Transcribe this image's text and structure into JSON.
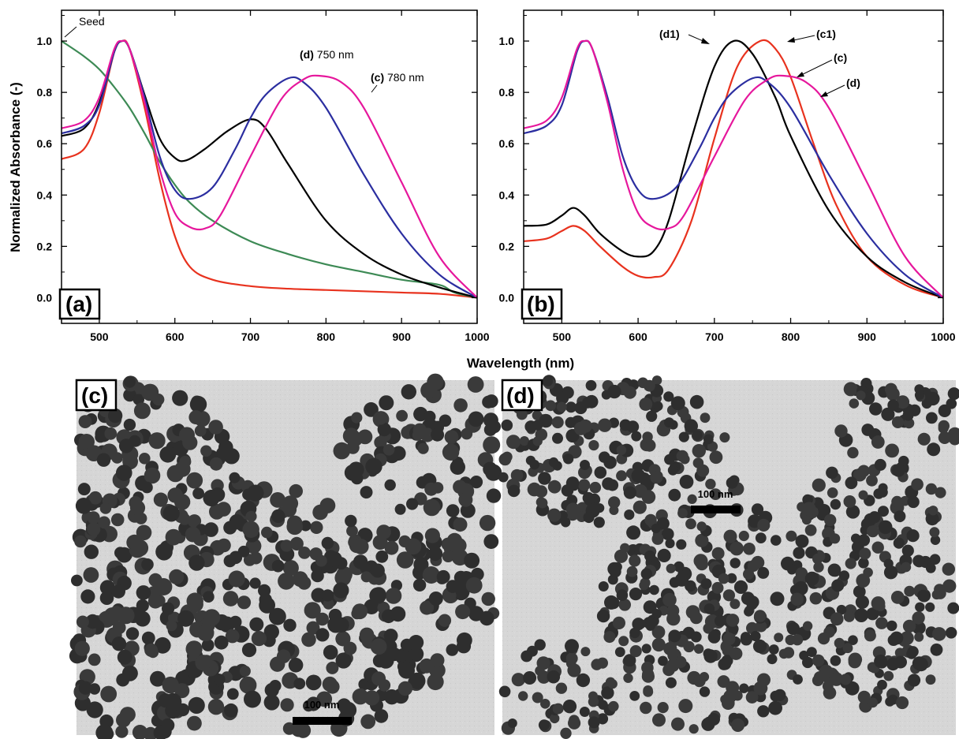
{
  "chart_data": [
    {
      "type": "line",
      "panel_label": "(a)",
      "xlabel": "Wavelength (nm)",
      "ylabel": "Normalized Absorbance (-)",
      "xlim": [
        450,
        1000
      ],
      "ylim": [
        -0.1,
        1.12
      ],
      "xticks": [
        500,
        600,
        700,
        800,
        900,
        1000
      ],
      "yticks": [
        0.0,
        0.2,
        0.4,
        0.6,
        0.8,
        1.0
      ],
      "grid": false,
      "series": [
        {
          "color": "#e8321e",
          "x": [
            450,
            480,
            500,
            520,
            530,
            540,
            560,
            580,
            600,
            620,
            650,
            700,
            750,
            800,
            850,
            900,
            950,
            1000
          ],
          "y": [
            0.54,
            0.58,
            0.72,
            0.96,
            1.0,
            0.97,
            0.74,
            0.46,
            0.24,
            0.12,
            0.07,
            0.045,
            0.035,
            0.03,
            0.025,
            0.02,
            0.015,
            0.0
          ]
        },
        {
          "color": "#3d8a55",
          "x": [
            450,
            480,
            500,
            520,
            540,
            560,
            580,
            600,
            620,
            650,
            700,
            750,
            800,
            850,
            900,
            950,
            970,
            1000
          ],
          "y": [
            1.0,
            0.94,
            0.89,
            0.82,
            0.74,
            0.64,
            0.53,
            0.44,
            0.37,
            0.3,
            0.22,
            0.17,
            0.13,
            0.1,
            0.07,
            0.05,
            0.02,
            0.0
          ]
        },
        {
          "color": "#000000",
          "x": [
            450,
            480,
            500,
            520,
            530,
            540,
            560,
            580,
            600,
            615,
            640,
            670,
            700,
            720,
            750,
            800,
            850,
            900,
            950,
            1000
          ],
          "y": [
            0.63,
            0.66,
            0.76,
            0.96,
            1.0,
            0.97,
            0.79,
            0.62,
            0.545,
            0.535,
            0.58,
            0.65,
            0.695,
            0.66,
            0.52,
            0.3,
            0.17,
            0.09,
            0.04,
            0.0
          ]
        },
        {
          "color": "#2b2ea0",
          "x": [
            450,
            480,
            500,
            520,
            530,
            540,
            560,
            580,
            600,
            620,
            650,
            680,
            700,
            720,
            750,
            770,
            800,
            850,
            900,
            950,
            1000
          ],
          "y": [
            0.64,
            0.67,
            0.75,
            0.96,
            1.0,
            0.97,
            0.78,
            0.55,
            0.42,
            0.385,
            0.43,
            0.58,
            0.7,
            0.79,
            0.855,
            0.84,
            0.74,
            0.48,
            0.25,
            0.09,
            0.0
          ]
        },
        {
          "color": "#e6179c",
          "x": [
            450,
            480,
            500,
            520,
            530,
            540,
            560,
            580,
            600,
            620,
            640,
            660,
            700,
            740,
            770,
            790,
            820,
            850,
            900,
            950,
            1000
          ],
          "y": [
            0.66,
            0.69,
            0.78,
            0.97,
            1.0,
            0.97,
            0.76,
            0.5,
            0.33,
            0.275,
            0.27,
            0.32,
            0.55,
            0.77,
            0.85,
            0.865,
            0.84,
            0.74,
            0.45,
            0.16,
            0.0
          ]
        }
      ],
      "annotations": [
        {
          "text": "Seed"
        },
        {
          "text_bold": "(d)",
          "text": " 750 nm"
        },
        {
          "text_bold": "(c)",
          "text": " 780 nm"
        }
      ]
    },
    {
      "type": "line",
      "panel_label": "(b)",
      "xlabel": "Wavelength (nm)",
      "xlim": [
        450,
        1000
      ],
      "ylim": [
        -0.1,
        1.12
      ],
      "xticks": [
        500,
        600,
        700,
        800,
        900,
        1000
      ],
      "yticks": [
        0.0,
        0.2,
        0.4,
        0.6,
        0.8,
        1.0
      ],
      "grid": false,
      "series": [
        {
          "color": "#e8321e",
          "x": [
            450,
            480,
            500,
            515,
            530,
            550,
            580,
            600,
            620,
            640,
            670,
            700,
            730,
            760,
            780,
            800,
            830,
            860,
            900,
            950,
            1000
          ],
          "y": [
            0.22,
            0.23,
            0.26,
            0.28,
            0.26,
            0.2,
            0.12,
            0.085,
            0.08,
            0.11,
            0.3,
            0.62,
            0.9,
            1.0,
            0.97,
            0.86,
            0.6,
            0.36,
            0.16,
            0.05,
            0.0
          ]
        },
        {
          "color": "#000000",
          "x": [
            450,
            480,
            500,
            515,
            530,
            550,
            580,
            600,
            620,
            640,
            670,
            700,
            725,
            750,
            780,
            800,
            850,
            900,
            950,
            1000
          ],
          "y": [
            0.28,
            0.285,
            0.32,
            0.35,
            0.32,
            0.25,
            0.18,
            0.16,
            0.18,
            0.3,
            0.62,
            0.9,
            1.0,
            0.95,
            0.78,
            0.63,
            0.34,
            0.16,
            0.06,
            0.0
          ]
        },
        {
          "color": "#2b2ea0",
          "x": [
            450,
            480,
            500,
            520,
            530,
            540,
            560,
            580,
            600,
            620,
            650,
            680,
            700,
            720,
            750,
            770,
            800,
            850,
            900,
            950,
            1000
          ],
          "y": [
            0.64,
            0.67,
            0.75,
            0.96,
            1.0,
            0.97,
            0.78,
            0.55,
            0.42,
            0.385,
            0.43,
            0.58,
            0.7,
            0.79,
            0.855,
            0.84,
            0.74,
            0.48,
            0.25,
            0.09,
            0.0
          ]
        },
        {
          "color": "#e6179c",
          "x": [
            450,
            480,
            500,
            520,
            530,
            540,
            560,
            580,
            600,
            620,
            640,
            660,
            700,
            740,
            770,
            790,
            820,
            850,
            900,
            950,
            1000
          ],
          "y": [
            0.66,
            0.69,
            0.78,
            0.97,
            1.0,
            0.97,
            0.76,
            0.5,
            0.33,
            0.275,
            0.27,
            0.32,
            0.55,
            0.77,
            0.85,
            0.865,
            0.84,
            0.74,
            0.45,
            0.16,
            0.0
          ]
        }
      ],
      "annotations": [
        {
          "text": "(d1)"
        },
        {
          "text": "(c1)"
        },
        {
          "text": "(c)"
        },
        {
          "text": "(d)"
        }
      ]
    }
  ],
  "micrographs": [
    {
      "panel_label": "(c)",
      "scale_bar": "100 nm"
    },
    {
      "panel_label": "(d)",
      "scale_bar": "100 nm"
    }
  ]
}
